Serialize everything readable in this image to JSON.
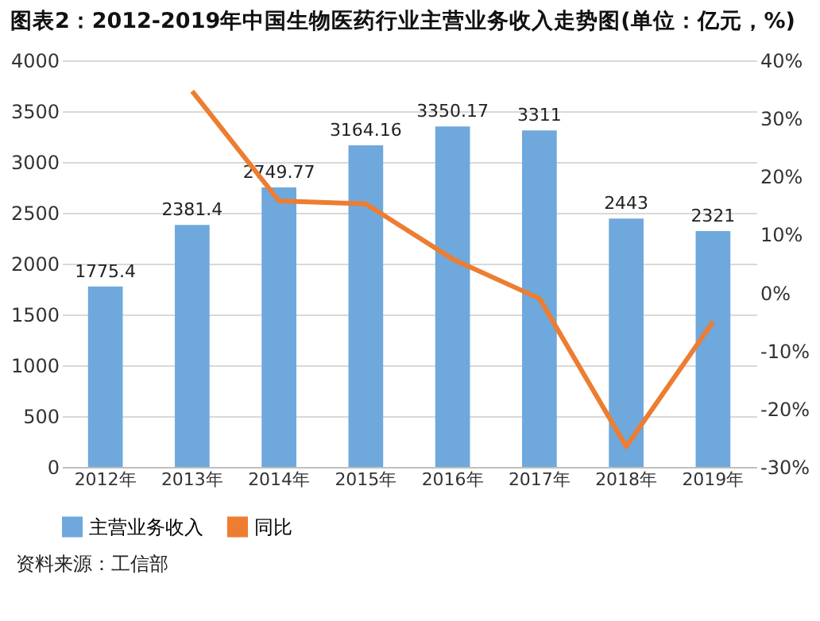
{
  "chart_data": {
    "type": "bar",
    "title": "图表2：2012-2019年中国生物医药行业主营业务收入走势图(单位：亿元，%)",
    "categories": [
      "2012年",
      "2013年",
      "2014年",
      "2015年",
      "2016年",
      "2017年",
      "2018年",
      "2019年"
    ],
    "series": [
      {
        "name": "主营业务收入",
        "color": "#6fa8dc",
        "values": [
          1775.4,
          2381.4,
          2749.77,
          3164.16,
          3350.17,
          3311,
          2443,
          2321
        ],
        "value_labels": [
          "1775.4",
          "2381.4",
          "2749.77",
          "3164.16",
          "3350.17",
          "3311",
          "2443",
          "2321"
        ]
      },
      {
        "name": "同比",
        "type": "line",
        "axis": "y2",
        "color": "#ed7d31",
        "values": [
          null,
          34.7,
          15.8,
          15.3,
          5.8,
          -1.0,
          -26.5,
          -5.0
        ]
      }
    ],
    "ylim": [
      0,
      4000
    ],
    "yticks": [
      0,
      500,
      1000,
      1500,
      2000,
      2500,
      3000,
      3500,
      4000
    ],
    "y2lim": [
      -30,
      40
    ],
    "y2ticks": [
      {
        "value": -30,
        "label": "-30%"
      },
      {
        "value": -20,
        "label": "-20%"
      },
      {
        "value": -10,
        "label": "-10%"
      },
      {
        "value": 0,
        "label": "0%"
      },
      {
        "value": 10,
        "label": "10%"
      },
      {
        "value": 20,
        "label": "20%"
      },
      {
        "value": 30,
        "label": "30%"
      },
      {
        "value": 40,
        "label": "40%"
      }
    ],
    "grid": "y",
    "legend": "bottom",
    "marker": "none",
    "line_style": "solid",
    "annotations": [
      "资料来源：工信部"
    ]
  }
}
